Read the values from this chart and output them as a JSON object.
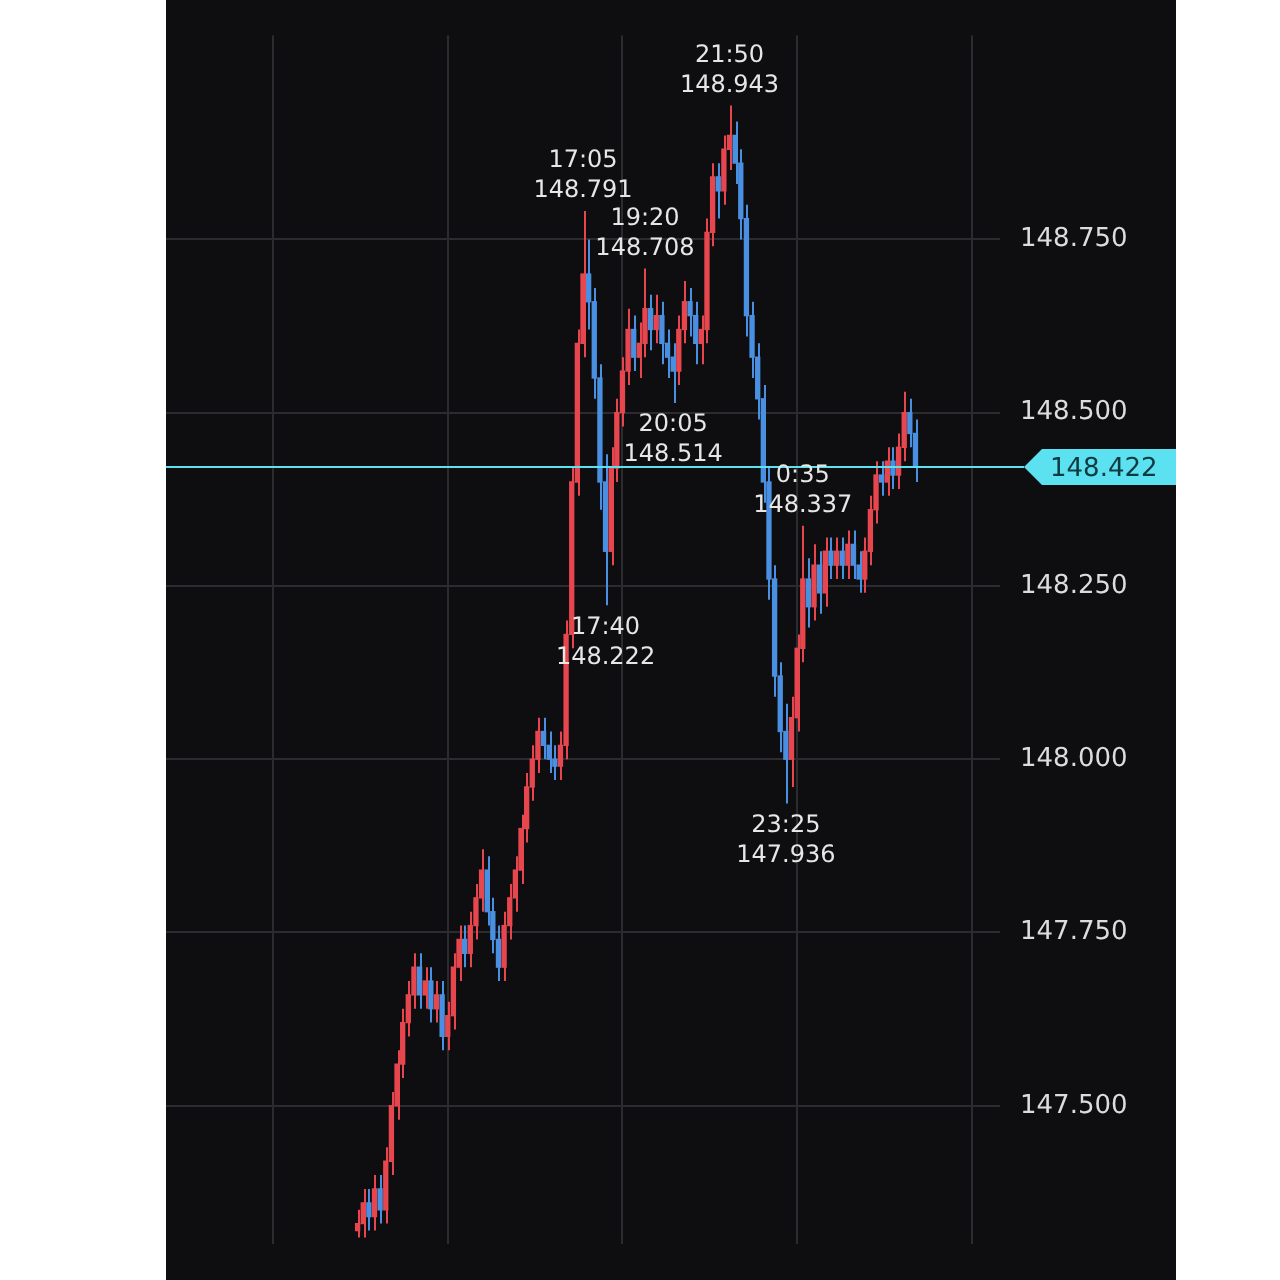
{
  "chart_data": {
    "type": "candlestick",
    "categories": [
      null,
      null,
      null,
      null,
      null,
      null,
      null,
      null,
      null,
      null,
      null,
      null,
      null,
      null,
      null,
      null,
      null,
      null,
      null,
      null,
      null,
      null,
      null,
      null,
      null,
      null,
      null,
      null,
      null,
      null,
      null,
      null,
      null,
      null,
      null,
      null,
      null,
      null,
      null,
      null,
      null,
      null,
      null,
      null,
      null,
      null,
      null,
      null,
      null,
      null,
      null,
      null,
      null,
      null,
      null,
      null,
      null,
      null,
      null,
      null,
      null,
      null,
      null,
      null,
      null,
      null,
      null,
      null,
      null,
      null,
      null,
      null,
      null,
      null,
      null,
      null,
      null,
      null,
      null,
      null,
      null,
      null,
      null,
      null,
      null,
      null,
      null,
      null,
      null,
      null,
      null,
      null,
      null,
      null,
      null,
      null,
      null,
      null,
      null,
      null,
      null,
      null,
      null,
      null,
      null,
      null,
      null,
      null,
      null,
      null,
      null,
      null,
      null,
      null,
      null,
      null,
      null,
      null,
      null,
      null,
      null,
      null,
      null,
      null,
      null,
      null,
      null,
      null,
      null,
      null,
      null,
      null,
      null,
      null,
      null,
      null,
      null,
      null,
      null,
      null,
      null,
      null,
      null,
      null,
      null,
      null,
      null,
      null,
      null
    ],
    "ohlc": [
      null,
      null,
      null,
      null,
      null,
      null,
      null,
      null,
      null,
      null,
      null,
      null,
      null,
      null,
      null,
      null,
      null,
      null,
      null,
      null,
      null,
      null,
      null,
      null,
      null,
      null,
      null,
      null,
      null,
      null,
      null,
      null,
      null,
      null,
      [
        147.32,
        147.35,
        147.31,
        147.33
      ],
      [
        147.33,
        147.38,
        147.31,
        147.36
      ],
      [
        147.36,
        147.38,
        147.32,
        147.34
      ],
      [
        147.34,
        147.4,
        147.32,
        147.38
      ],
      [
        147.38,
        147.4,
        147.33,
        147.35
      ],
      [
        147.35,
        147.44,
        147.33,
        147.42
      ],
      [
        147.42,
        147.52,
        147.4,
        147.5
      ],
      [
        147.5,
        147.58,
        147.48,
        147.56
      ],
      [
        147.56,
        147.64,
        147.54,
        147.62
      ],
      [
        147.62,
        147.68,
        147.6,
        147.66
      ],
      [
        147.66,
        147.72,
        147.64,
        147.7
      ],
      [
        147.7,
        147.72,
        147.64,
        147.66
      ],
      [
        147.66,
        147.7,
        147.64,
        147.68
      ],
      [
        147.68,
        147.7,
        147.62,
        147.64
      ],
      [
        147.64,
        147.68,
        147.62,
        147.66
      ],
      [
        147.66,
        147.68,
        147.58,
        147.6
      ],
      [
        147.6,
        147.65,
        147.58,
        147.63
      ],
      [
        147.63,
        147.72,
        147.61,
        147.7
      ],
      [
        147.7,
        147.76,
        147.68,
        147.74
      ],
      [
        147.74,
        147.76,
        147.7,
        147.72
      ],
      [
        147.72,
        147.78,
        147.7,
        147.76
      ],
      [
        147.76,
        147.82,
        147.74,
        147.8
      ],
      [
        147.8,
        147.87,
        147.78,
        147.84
      ],
      [
        147.84,
        147.86,
        147.76,
        147.78
      ],
      [
        147.78,
        147.8,
        147.72,
        147.74
      ],
      [
        147.74,
        147.76,
        147.68,
        147.7
      ],
      [
        147.7,
        147.78,
        147.68,
        147.76
      ],
      [
        147.76,
        147.82,
        147.74,
        147.8
      ],
      [
        147.8,
        147.86,
        147.78,
        147.84
      ],
      [
        147.84,
        147.92,
        147.82,
        147.9
      ],
      [
        147.9,
        147.98,
        147.88,
        147.96
      ],
      [
        147.96,
        148.02,
        147.94,
        148.0
      ],
      [
        148.0,
        148.06,
        147.98,
        148.04
      ],
      [
        148.04,
        148.06,
        148.0,
        148.02
      ],
      [
        148.02,
        148.04,
        147.98,
        148.0
      ],
      [
        148.0,
        148.02,
        147.97,
        147.99
      ],
      [
        147.99,
        148.04,
        147.97,
        148.02
      ],
      [
        148.02,
        148.2,
        148.0,
        148.18
      ],
      [
        148.18,
        148.42,
        148.16,
        148.4
      ],
      [
        148.4,
        148.62,
        148.38,
        148.6
      ],
      [
        148.6,
        148.791,
        148.58,
        148.7
      ],
      [
        148.7,
        148.75,
        148.62,
        148.66
      ],
      [
        148.66,
        148.68,
        148.52,
        148.55
      ],
      [
        148.55,
        148.57,
        148.36,
        148.4
      ],
      [
        148.4,
        148.44,
        148.222,
        148.3
      ],
      [
        148.3,
        148.45,
        148.28,
        148.42
      ],
      [
        148.42,
        148.52,
        148.4,
        148.5
      ],
      [
        148.5,
        148.58,
        148.48,
        148.56
      ],
      [
        148.56,
        148.65,
        148.54,
        148.62
      ],
      [
        148.62,
        148.64,
        148.56,
        148.58
      ],
      [
        148.58,
        148.63,
        148.55,
        148.6
      ],
      [
        148.6,
        148.708,
        148.58,
        148.65
      ],
      [
        148.65,
        148.67,
        148.59,
        148.62
      ],
      [
        148.62,
        148.67,
        148.6,
        148.64
      ],
      [
        148.64,
        148.66,
        148.57,
        148.6
      ],
      [
        148.6,
        148.62,
        148.55,
        148.58
      ],
      [
        148.58,
        148.6,
        148.514,
        148.56
      ],
      [
        148.56,
        148.64,
        148.54,
        148.62
      ],
      [
        148.62,
        148.69,
        148.6,
        148.66
      ],
      [
        148.66,
        148.68,
        148.61,
        148.64
      ],
      [
        148.64,
        148.66,
        148.57,
        148.6
      ],
      [
        148.6,
        148.64,
        148.57,
        148.62
      ],
      [
        148.62,
        148.78,
        148.6,
        148.76
      ],
      [
        148.76,
        148.86,
        148.74,
        148.84
      ],
      [
        148.84,
        148.86,
        148.78,
        148.82
      ],
      [
        148.82,
        148.9,
        148.8,
        148.88
      ],
      [
        148.88,
        148.943,
        148.85,
        148.9
      ],
      [
        148.9,
        148.92,
        148.83,
        148.86
      ],
      [
        148.86,
        148.88,
        148.75,
        148.78
      ],
      [
        148.78,
        148.8,
        148.61,
        148.64
      ],
      [
        148.64,
        148.66,
        148.55,
        148.58
      ],
      [
        148.58,
        148.6,
        148.49,
        148.52
      ],
      [
        148.52,
        148.54,
        148.37,
        148.4
      ],
      [
        148.4,
        148.42,
        148.23,
        148.26
      ],
      [
        148.26,
        148.28,
        148.09,
        148.12
      ],
      [
        148.12,
        148.14,
        148.01,
        148.04
      ],
      [
        148.04,
        148.08,
        147.936,
        148.0
      ],
      [
        148.0,
        148.09,
        147.96,
        148.06
      ],
      [
        148.06,
        148.18,
        148.04,
        148.16
      ],
      [
        148.16,
        148.337,
        148.14,
        148.26
      ],
      [
        148.26,
        148.29,
        148.19,
        148.22
      ],
      [
        148.22,
        148.31,
        148.2,
        148.28
      ],
      [
        148.28,
        148.3,
        148.21,
        148.24
      ],
      [
        148.24,
        148.32,
        148.22,
        148.3
      ],
      [
        148.3,
        148.32,
        148.26,
        148.28
      ],
      [
        148.28,
        148.32,
        148.26,
        148.3
      ],
      [
        148.3,
        148.32,
        148.26,
        148.28
      ],
      [
        148.28,
        148.33,
        148.26,
        148.31
      ],
      [
        148.31,
        148.33,
        148.26,
        148.28
      ],
      [
        148.28,
        148.3,
        148.24,
        148.26
      ],
      [
        148.26,
        148.32,
        148.24,
        148.3
      ],
      [
        148.3,
        148.38,
        148.28,
        148.36
      ],
      [
        148.36,
        148.43,
        148.34,
        148.41
      ],
      [
        148.41,
        148.43,
        148.38,
        148.4
      ],
      [
        148.4,
        148.45,
        148.38,
        148.43
      ],
      [
        148.43,
        148.45,
        148.39,
        148.41
      ],
      [
        148.41,
        148.47,
        148.39,
        148.45
      ],
      [
        148.45,
        148.53,
        148.43,
        148.5
      ],
      [
        148.5,
        148.52,
        148.45,
        148.47
      ],
      [
        148.47,
        148.49,
        148.4,
        148.422
      ],
      null,
      null,
      null,
      null,
      null,
      null,
      null,
      null,
      null,
      null,
      null,
      null,
      null,
      null,
      null
    ],
    "colors": [
      null,
      null,
      null,
      null,
      null,
      null,
      null,
      null,
      null,
      null,
      null,
      null,
      null,
      null,
      null,
      null,
      null,
      null,
      null,
      null,
      null,
      null,
      null,
      null,
      null,
      null,
      null,
      null,
      null,
      null,
      null,
      null,
      null,
      null,
      "#e8464e",
      "#e8464e",
      "#4a90e2",
      "#e8464e",
      "#4a90e2",
      "#e8464e",
      "#e8464e",
      "#e8464e",
      "#e8464e",
      "#e8464e",
      "#e8464e",
      "#4a90e2",
      "#e8464e",
      "#4a90e2",
      "#e8464e",
      "#4a90e2",
      "#e8464e",
      "#e8464e",
      "#e8464e",
      "#4a90e2",
      "#e8464e",
      "#e8464e",
      "#e8464e",
      "#4a90e2",
      "#4a90e2",
      "#4a90e2",
      "#e8464e",
      "#e8464e",
      "#e8464e",
      "#e8464e",
      "#e8464e",
      "#e8464e",
      "#e8464e",
      "#4a90e2",
      "#4a90e2",
      "#4a90e2",
      "#e8464e",
      "#e8464e",
      "#e8464e",
      "#e8464e",
      "#e8464e",
      "#4a90e2",
      "#4a90e2",
      "#4a90e2",
      "#4a90e2",
      "#e8464e",
      "#e8464e",
      "#e8464e",
      "#e8464e",
      "#4a90e2",
      "#e8464e",
      "#e8464e",
      "#4a90e2",
      "#e8464e",
      "#4a90e2",
      "#4a90e2",
      "#4a90e2",
      "#e8464e",
      "#e8464e",
      "#4a90e2",
      "#4a90e2",
      "#e8464e",
      "#e8464e",
      "#e8464e",
      "#4a90e2",
      "#e8464e",
      "#e8464e",
      "#4a90e2",
      "#4a90e2",
      "#4a90e2",
      "#4a90e2",
      "#4a90e2",
      "#4a90e2",
      "#4a90e2",
      "#4a90e2",
      "#4a90e2",
      "#4a90e2",
      "#e8464e",
      "#e8464e",
      "#e8464e",
      "#4a90e2",
      "#e8464e",
      "#4a90e2",
      "#e8464e",
      "#4a90e2",
      "#e8464e",
      "#4a90e2",
      "#e8464e",
      "#4a90e2",
      "#4a90e2",
      "#e8464e",
      "#e8464e",
      "#e8464e",
      "#4a90e2",
      "#e8464e",
      "#4a90e2",
      "#e8464e",
      "#e8464e",
      "#4a90e2",
      "#4a90e2",
      null,
      null,
      null,
      null,
      null,
      null,
      null,
      null,
      null,
      null,
      null,
      null,
      null,
      null,
      null
    ],
    "ylim": [
      147.3,
      149.044
    ],
    "yticks": [
      {
        "value": 147.5,
        "label": "147.500"
      },
      {
        "value": 147.75,
        "label": "147.750"
      },
      {
        "value": 148,
        "label": "148.000"
      },
      {
        "value": 148.25,
        "label": "148.250"
      },
      {
        "value": 148.5,
        "label": "148.500"
      },
      {
        "value": 148.75,
        "label": "148.750"
      }
    ],
    "tick_labels": "y",
    "grid": true,
    "legend": false,
    "ref_lines": [
      {
        "axis": "y",
        "value": 148.422,
        "label": "148.422",
        "color": "#5ce1f0"
      }
    ],
    "annotations": [
      {
        "text": "17:05\n148.791",
        "y": 148.791
      },
      {
        "text": "17:40\n148.222",
        "y": 148.222
      },
      {
        "text": "19:20\n148.708",
        "y": 148.708
      },
      {
        "text": "20:05\n148.514",
        "y": 148.514
      },
      {
        "text": "21:50\n148.943",
        "y": 148.943
      },
      {
        "text": "23:25\n147.936",
        "y": 147.936
      },
      {
        "text": "0:35\n148.337",
        "y": 148.337
      }
    ]
  }
}
